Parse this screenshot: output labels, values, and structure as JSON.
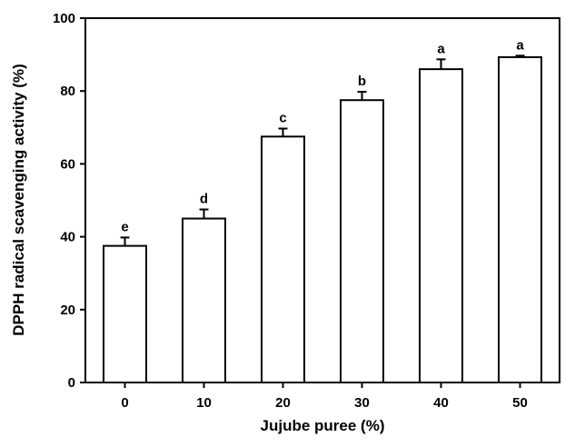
{
  "chart_data": {
    "type": "bar",
    "xlabel": "Jujube puree (%)",
    "ylabel": "DPPH radical scavenging activity (%)",
    "categories": [
      "0",
      "10",
      "20",
      "30",
      "40",
      "50"
    ],
    "values": [
      37.5,
      45.0,
      67.5,
      77.5,
      86.0,
      89.3
    ],
    "errors": [
      2.3,
      2.5,
      2.2,
      2.3,
      2.7,
      0.4
    ],
    "significance": [
      "e",
      "d",
      "c",
      "b",
      "a",
      "a"
    ],
    "ylim": [
      0,
      100
    ],
    "yticks": [
      0,
      20,
      40,
      60,
      80,
      100
    ],
    "grid": false,
    "bar_fill": "#ffffff",
    "bar_stroke": "#000000"
  }
}
